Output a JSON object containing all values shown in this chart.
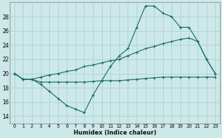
{
  "xlabel": "Humidex (Indice chaleur)",
  "bg_color": "#cce8e8",
  "grid_color": "#a8cccc",
  "line_color": "#1a6b6b",
  "ylim": [
    13,
    30
  ],
  "xlim": [
    -0.5,
    23.5
  ],
  "yticks": [
    14,
    16,
    18,
    20,
    22,
    24,
    26,
    28
  ],
  "xticks": [
    0,
    1,
    2,
    3,
    4,
    5,
    6,
    7,
    8,
    9,
    10,
    11,
    12,
    13,
    14,
    15,
    16,
    17,
    18,
    19,
    20,
    21,
    22,
    23
  ],
  "line_top_x": [
    0,
    1,
    2,
    3,
    4,
    5,
    6,
    7,
    8,
    9,
    10,
    11,
    12,
    13,
    14,
    15,
    16,
    17,
    18,
    19,
    20,
    21,
    22,
    23
  ],
  "line_top_y": [
    20,
    19.2,
    19.2,
    18.5,
    17.5,
    16.5,
    15.5,
    15.0,
    14.5,
    17.0,
    19.0,
    21.0,
    22.5,
    23.5,
    26.5,
    29.5,
    29.5,
    28.5,
    28.0,
    26.5,
    26.5,
    24.5,
    22.0,
    20.0
  ],
  "line_mid_x": [
    0,
    1,
    2,
    3,
    4,
    5,
    6,
    7,
    8,
    9,
    10,
    11,
    12,
    13,
    14,
    15,
    16,
    17,
    18,
    19,
    20,
    21,
    22,
    23
  ],
  "line_mid_y": [
    20,
    19.2,
    19.2,
    19.5,
    19.8,
    20.0,
    20.3,
    20.5,
    21.0,
    21.2,
    21.5,
    21.8,
    22.0,
    22.5,
    23.0,
    23.5,
    23.8,
    24.2,
    24.5,
    24.8,
    25.0,
    24.5,
    22.0,
    20.0
  ],
  "line_bot_x": [
    0,
    1,
    2,
    3,
    4,
    5,
    6,
    7,
    8,
    9,
    10,
    11,
    12,
    13,
    14,
    15,
    16,
    17,
    18,
    19,
    20,
    21,
    22,
    23
  ],
  "line_bot_y": [
    20,
    19.2,
    19.2,
    18.8,
    18.8,
    18.8,
    18.8,
    18.8,
    18.8,
    18.9,
    19.0,
    19.0,
    19.0,
    19.1,
    19.2,
    19.3,
    19.4,
    19.5,
    19.5,
    19.5,
    19.5,
    19.5,
    19.5,
    19.5
  ]
}
